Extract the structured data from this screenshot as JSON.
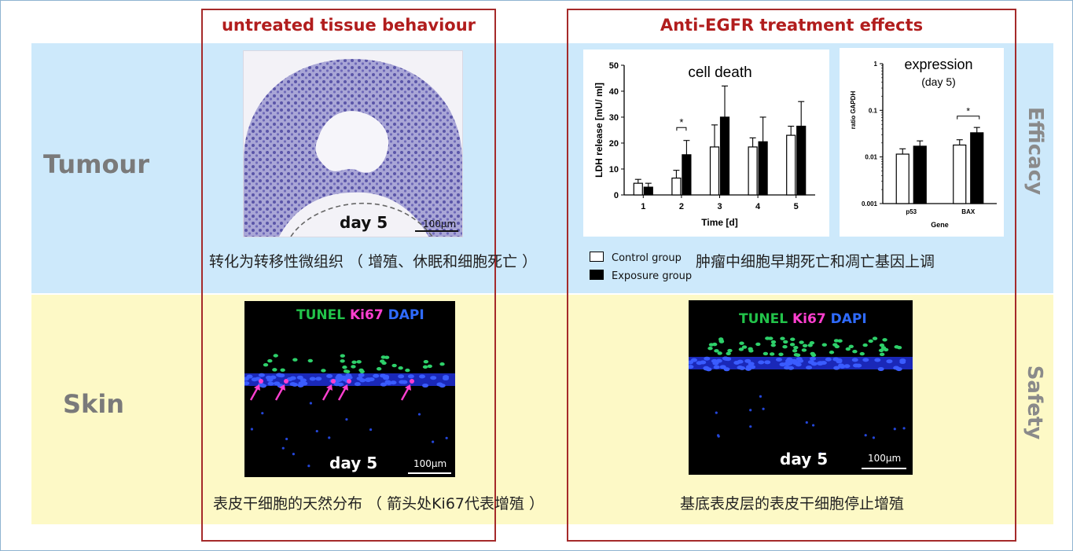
{
  "rows": {
    "tumour": "Tumour",
    "skin": "Skin"
  },
  "side_labels": {
    "efficacy": "Efficacy",
    "safety": "Safety"
  },
  "columns": {
    "left_title": "untreated tissue behaviour",
    "right_title": "Anti-EGFR treatment effects"
  },
  "captions": {
    "tumour_left": "转化为转移性微组织 （ 增殖、休眠和细胞死亡 ）",
    "tumour_right": "肿瘤中细胞早期死亡和凋亡基因上调",
    "skin_left": "表皮干细胞的天然分布 （ 箭头处Ki67代表增殖 ）",
    "skin_right": "基底表皮层的表皮干细胞停止增殖"
  },
  "images": {
    "tumour_histo": {
      "day": "day 5",
      "scale": "100µm"
    },
    "skin_left": {
      "stain_tunel": "TUNEL",
      "stain_ki67": "Ki67",
      "stain_dapi": "DAPI",
      "day": "day 5",
      "scale": "100µm"
    },
    "skin_right": {
      "stain_tunel": "TUNEL",
      "stain_ki67": "Ki67",
      "stain_dapi": "DAPI",
      "day": "day 5",
      "scale": "100µm"
    }
  },
  "legend": {
    "control": "Control group",
    "exposure": "Exposure group"
  },
  "colors": {
    "tunel": "#22c34a",
    "ki67": "#ff3fd0",
    "dapi": "#2f5bff",
    "accent": "#a52a2a"
  },
  "chart_data": [
    {
      "type": "bar",
      "title": "cell death",
      "xlabel": "Time [d]",
      "ylabel": "LDH release [mU/ ml]",
      "categories": [
        "1",
        "2",
        "3",
        "4",
        "5"
      ],
      "ylim": [
        0,
        50
      ],
      "yticks": [
        0,
        10,
        20,
        30,
        40,
        50
      ],
      "series": [
        {
          "name": "Control group",
          "values": [
            4.5,
            6.5,
            18.5,
            18.5,
            23
          ],
          "errors": [
            1.5,
            3,
            8.5,
            3.5,
            3.5
          ]
        },
        {
          "name": "Exposure group",
          "values": [
            3,
            15.5,
            30,
            20.5,
            26.5
          ],
          "errors": [
            1.5,
            5.5,
            12,
            9.5,
            9.5
          ]
        }
      ],
      "annotations": [
        {
          "category": "2",
          "text": "*"
        }
      ]
    },
    {
      "type": "bar",
      "title": "expression",
      "subtitle": "(day 5)",
      "xlabel": "Gene",
      "ylabel": "ratio GAPDH",
      "log_scale": true,
      "categories": [
        "p53",
        "BAX"
      ],
      "ylim": [
        0.001,
        1
      ],
      "ytick_labels": [
        "0.001",
        "0.01",
        "0.1",
        "1"
      ],
      "series": [
        {
          "name": "Control group",
          "values": [
            0.0115,
            0.018
          ]
        },
        {
          "name": "Exposure group",
          "values": [
            0.017,
            0.033
          ]
        }
      ],
      "annotations": [
        {
          "category": "BAX",
          "text": "*"
        }
      ]
    }
  ]
}
